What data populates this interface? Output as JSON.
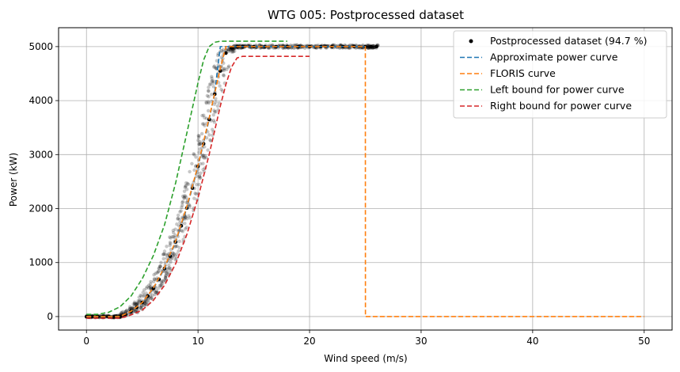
{
  "chart_data": {
    "type": "scatter",
    "title": "WTG 005: Postprocessed dataset",
    "xlabel": "Wind speed (m/s)",
    "ylabel": "Power (kW)",
    "xlim": [
      -2.5,
      52.5
    ],
    "ylim": [
      -250,
      5350
    ],
    "xticks": [
      0,
      10,
      20,
      30,
      40,
      50
    ],
    "yticks": [
      0,
      1000,
      2000,
      3000,
      4000,
      5000
    ],
    "grid": true,
    "legend_position": "top-right",
    "series": [
      {
        "name": "Postprocessed dataset (94.7 %)",
        "kind": "scatter",
        "color": "#000000",
        "points": [
          [
            0,
            0
          ],
          [
            0.5,
            0
          ],
          [
            1,
            0
          ],
          [
            1.5,
            0
          ],
          [
            2,
            0
          ],
          [
            2.5,
            0
          ],
          [
            3,
            0
          ],
          [
            3.5,
            40
          ],
          [
            4,
            100
          ],
          [
            4.5,
            170
          ],
          [
            5,
            260
          ],
          [
            5.5,
            380
          ],
          [
            6,
            520
          ],
          [
            6.5,
            690
          ],
          [
            7,
            890
          ],
          [
            7.5,
            1120
          ],
          [
            8,
            1380
          ],
          [
            8.5,
            1680
          ],
          [
            9,
            2010
          ],
          [
            9.5,
            2380
          ],
          [
            10,
            2780
          ],
          [
            10.5,
            3200
          ],
          [
            11,
            3650
          ],
          [
            11.5,
            4120
          ],
          [
            12,
            4550
          ],
          [
            12.5,
            4880
          ],
          [
            13,
            4980
          ],
          [
            13.5,
            5000
          ],
          [
            14,
            5000
          ],
          [
            15,
            5000
          ],
          [
            16,
            5000
          ],
          [
            17,
            5000
          ],
          [
            18,
            5000
          ],
          [
            19,
            5000
          ],
          [
            20,
            5000
          ],
          [
            21,
            5000
          ],
          [
            22,
            5000
          ],
          [
            23,
            5000
          ],
          [
            24,
            5000
          ],
          [
            25,
            5000
          ],
          [
            25.5,
            5000
          ],
          [
            26,
            5000
          ]
        ]
      },
      {
        "name": "Approximate power curve",
        "kind": "dashed-line",
        "color": "#1f77b4",
        "x": [
          0,
          3,
          4,
          5,
          6,
          7,
          8,
          9,
          10,
          11,
          11.5,
          12,
          25
        ],
        "y": [
          0,
          0,
          100,
          260,
          520,
          890,
          1380,
          2010,
          2780,
          3650,
          4150,
          5000,
          5000
        ]
      },
      {
        "name": "FLORIS curve",
        "kind": "dashed-line",
        "color": "#ff7f0e",
        "x": [
          0,
          3,
          4,
          5,
          6,
          7,
          8,
          9,
          10,
          11,
          12,
          12.5,
          25,
          25.01,
          50
        ],
        "y": [
          0,
          0,
          100,
          260,
          530,
          910,
          1400,
          2040,
          2800,
          3680,
          4600,
          5000,
          5000,
          0,
          0
        ]
      },
      {
        "name": "Left bound for power curve",
        "kind": "dashed-line",
        "color": "#2ca02c",
        "x": [
          0,
          1,
          2,
          3,
          4,
          5,
          6,
          7,
          8,
          9,
          10,
          10.5,
          11,
          11.5,
          12,
          13,
          14,
          15,
          16,
          17,
          18
        ],
        "y": [
          40,
          40,
          80,
          180,
          380,
          700,
          1130,
          1700,
          2480,
          3400,
          4330,
          4750,
          5000,
          5080,
          5100,
          5100,
          5100,
          5100,
          5100,
          5100,
          5100
        ]
      },
      {
        "name": "Right bound for power curve",
        "kind": "dashed-line",
        "color": "#d62728",
        "x": [
          0,
          2,
          3,
          4,
          5,
          6,
          7,
          8,
          9,
          10,
          11,
          12,
          12.5,
          13,
          13.5,
          14,
          15,
          16,
          17,
          18,
          19,
          20
        ],
        "y": [
          -30,
          -30,
          -30,
          30,
          120,
          300,
          580,
          980,
          1520,
          2200,
          3000,
          3900,
          4300,
          4620,
          4790,
          4820,
          4820,
          4820,
          4820,
          4820,
          4820,
          4820
        ]
      }
    ],
    "legend": [
      "Postprocessed dataset (94.7 %)",
      "Approximate power curve",
      "FLORIS curve",
      "Left bound for power curve",
      "Right bound for power curve"
    ]
  }
}
